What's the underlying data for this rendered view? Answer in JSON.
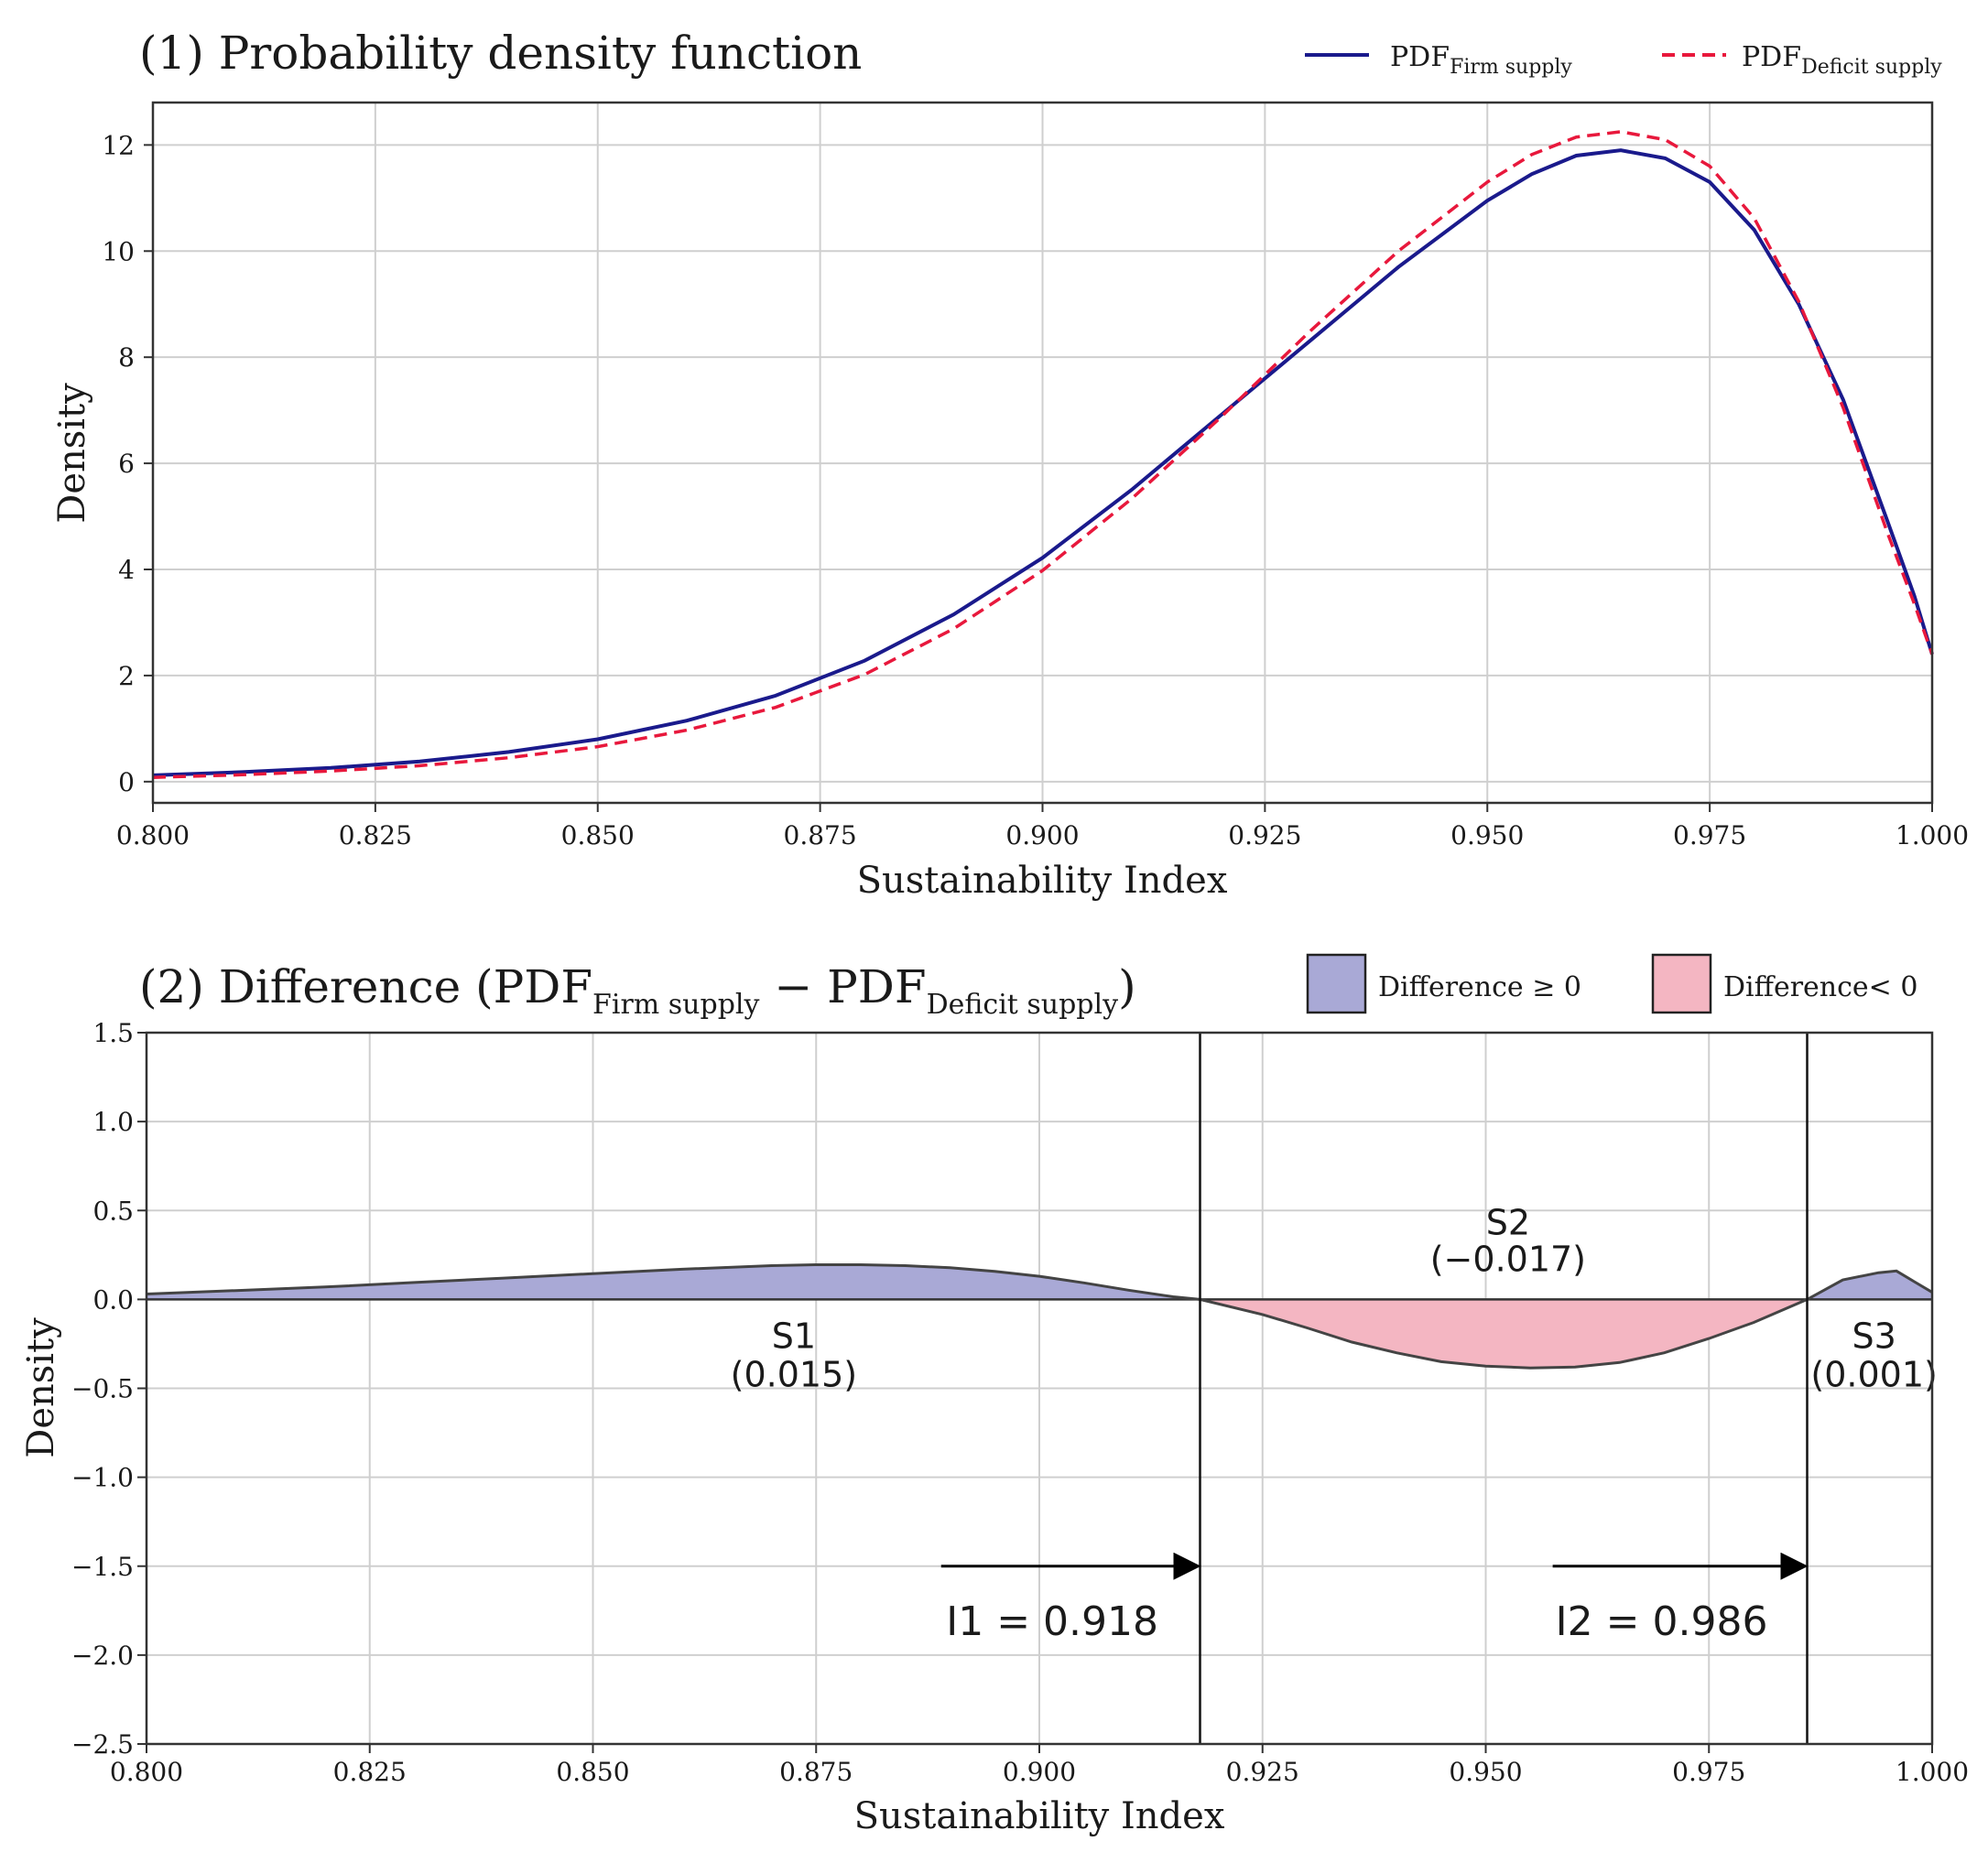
{
  "chart_data": [
    {
      "type": "line",
      "title": "(1) Probability density function",
      "xlabel": "Sustainability Index",
      "ylabel": "Density",
      "xlim": [
        0.8,
        1.0
      ],
      "ylim": [
        -0.4,
        12.8
      ],
      "xticks": [
        0.8,
        0.825,
        0.85,
        0.875,
        0.9,
        0.925,
        0.95,
        0.975,
        1.0
      ],
      "xtick_labels": [
        "0.800",
        "0.825",
        "0.850",
        "0.875",
        "0.900",
        "0.925",
        "0.950",
        "0.975",
        "1.000"
      ],
      "yticks": [
        0,
        2,
        4,
        6,
        8,
        10,
        12
      ],
      "ytick_labels": [
        "0",
        "2",
        "4",
        "6",
        "8",
        "10",
        "12"
      ],
      "grid": true,
      "legend_position": "top-right",
      "series": [
        {
          "name": "PDF",
          "subscript": "Firm supply",
          "color": "#1a1a8c",
          "style": "solid",
          "x": [
            0.8,
            0.81,
            0.82,
            0.83,
            0.84,
            0.85,
            0.86,
            0.87,
            0.88,
            0.89,
            0.9,
            0.91,
            0.92,
            0.93,
            0.94,
            0.95,
            0.955,
            0.96,
            0.965,
            0.97,
            0.975,
            0.98,
            0.985,
            0.99,
            0.995,
            0.998,
            1.0
          ],
          "values": [
            0.12,
            0.18,
            0.26,
            0.38,
            0.56,
            0.8,
            1.15,
            1.62,
            2.28,
            3.15,
            4.22,
            5.5,
            6.9,
            8.3,
            9.7,
            10.95,
            11.45,
            11.8,
            11.9,
            11.75,
            11.3,
            10.4,
            9.0,
            7.2,
            4.9,
            3.5,
            2.4
          ]
        },
        {
          "name": "PDF",
          "subscript": "Deficit supply",
          "color": "#e8183c",
          "style": "dashed",
          "x": [
            0.8,
            0.81,
            0.82,
            0.83,
            0.84,
            0.85,
            0.86,
            0.87,
            0.88,
            0.89,
            0.9,
            0.91,
            0.92,
            0.93,
            0.94,
            0.95,
            0.955,
            0.96,
            0.965,
            0.97,
            0.975,
            0.98,
            0.985,
            0.99,
            0.995,
            0.998,
            1.0
          ],
          "values": [
            0.08,
            0.13,
            0.2,
            0.3,
            0.45,
            0.66,
            0.97,
            1.4,
            2.02,
            2.88,
            3.98,
            5.33,
            6.86,
            8.48,
            10.0,
            11.3,
            11.82,
            12.15,
            12.25,
            12.1,
            11.6,
            10.62,
            9.05,
            7.05,
            4.68,
            3.35,
            2.4
          ]
        }
      ]
    },
    {
      "type": "area",
      "title_prefix": "(2) Difference (",
      "title_term1": "PDF",
      "title_sub1": "Firm supply",
      "title_minus": " − ",
      "title_term2": "PDF",
      "title_sub2": "Deficit supply",
      "title_suffix": ")",
      "xlabel": "Sustainability Index",
      "ylabel": "Density",
      "xlim": [
        0.8,
        1.0
      ],
      "ylim": [
        -2.5,
        1.5
      ],
      "xticks": [
        0.8,
        0.825,
        0.85,
        0.875,
        0.9,
        0.925,
        0.95,
        0.975,
        1.0
      ],
      "xtick_labels": [
        "0.800",
        "0.825",
        "0.850",
        "0.875",
        "0.900",
        "0.925",
        "0.950",
        "0.975",
        "1.000"
      ],
      "yticks": [
        1.5,
        1.0,
        0.5,
        0.0,
        -0.5,
        -1.0,
        -1.5,
        -2.0,
        -2.5
      ],
      "ytick_labels": [
        "1.5",
        "1.0",
        "0.5",
        "0.0",
        "−0.5",
        "−1.0",
        "−1.5",
        "−2.0",
        "−2.5"
      ],
      "grid": true,
      "legend_position": "top-right",
      "legend": [
        {
          "label": "Difference ≥ 0",
          "color": "#a9a9d6"
        },
        {
          "label": "Difference< 0",
          "color": "#f4b6c2"
        }
      ],
      "series": [
        {
          "name": "Difference",
          "x": [
            0.8,
            0.81,
            0.82,
            0.83,
            0.84,
            0.85,
            0.86,
            0.87,
            0.875,
            0.88,
            0.885,
            0.89,
            0.895,
            0.9,
            0.905,
            0.91,
            0.915,
            0.918,
            0.925,
            0.93,
            0.935,
            0.94,
            0.945,
            0.95,
            0.955,
            0.96,
            0.965,
            0.97,
            0.975,
            0.98,
            0.986,
            0.99,
            0.994,
            0.996,
            0.998,
            1.0
          ],
          "values": [
            0.03,
            0.05,
            0.07,
            0.095,
            0.12,
            0.145,
            0.17,
            0.19,
            0.195,
            0.195,
            0.19,
            0.178,
            0.158,
            0.13,
            0.093,
            0.052,
            0.015,
            0.0,
            -0.085,
            -0.16,
            -0.24,
            -0.3,
            -0.35,
            -0.375,
            -0.385,
            -0.38,
            -0.355,
            -0.3,
            -0.22,
            -0.13,
            0.0,
            0.11,
            0.15,
            0.16,
            0.1,
            0.04
          ]
        }
      ],
      "regions": [
        {
          "name": "S1",
          "value": "(0.015)",
          "x": 0.8725,
          "y": -0.12
        },
        {
          "name": "S2",
          "value": "(−0.017)",
          "x": 0.9525,
          "y": 0.2
        },
        {
          "name": "S3",
          "value": "(0.001)",
          "x": 0.9935,
          "y": -0.12
        }
      ],
      "thresholds": [
        {
          "label": "I1 = 0.918",
          "x": 0.918,
          "arrow_from": 0.889,
          "y": -1.5
        },
        {
          "label": "I2 = 0.986",
          "x": 0.986,
          "arrow_from": 0.9575,
          "y": -1.5
        }
      ]
    }
  ]
}
